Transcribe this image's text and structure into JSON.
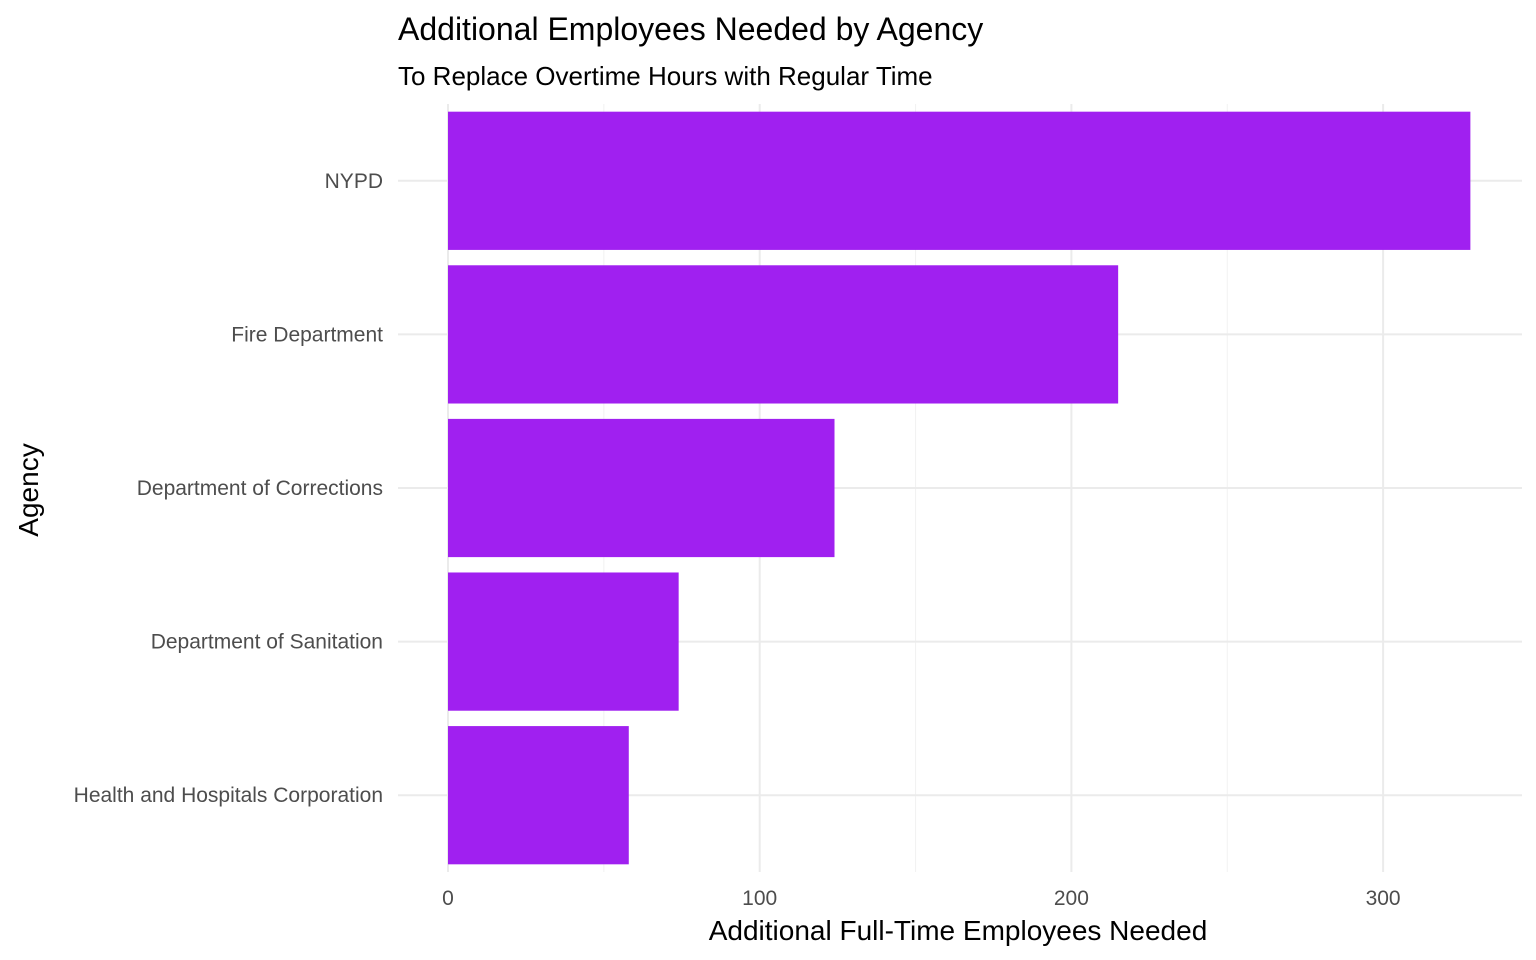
{
  "chart_data": {
    "type": "bar",
    "orientation": "horizontal",
    "title": "Additional Employees Needed by Agency",
    "subtitle": "To Replace Overtime Hours with Regular Time",
    "xlabel": "Additional Full-Time Employees Needed",
    "ylabel": "Agency",
    "categories": [
      "NYPD",
      "Fire Department",
      "Department of Corrections",
      "Department of Sanitation",
      "Health and Hospitals Corporation"
    ],
    "values": [
      328,
      215,
      124,
      74,
      58
    ],
    "xlim": [
      0,
      345
    ],
    "xticks": [
      0,
      100,
      200,
      300
    ],
    "xtick_labels": [
      "0",
      "100",
      "200",
      "300"
    ],
    "bar_color": "#a020f0",
    "grid": true,
    "legend": "none"
  }
}
